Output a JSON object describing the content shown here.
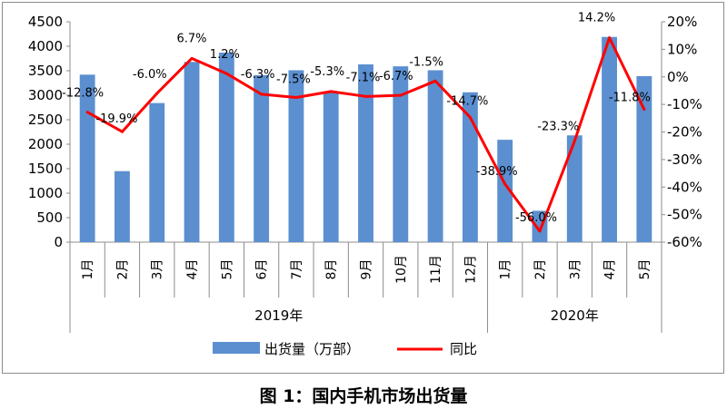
{
  "caption": "图 1：国内手机市场出货量",
  "chart_data": {
    "type": "bar",
    "title": "",
    "categories": [
      "1月",
      "2月",
      "3月",
      "4月",
      "5月",
      "6月",
      "7月",
      "8月",
      "9月",
      "10月",
      "11月",
      "12月",
      "1月",
      "2月",
      "3月",
      "4月",
      "5月"
    ],
    "groups": [
      {
        "label": "2019年",
        "count": 12
      },
      {
        "label": "2020年",
        "count": 5
      }
    ],
    "series": [
      {
        "name": "出货量（万部）",
        "type": "bar",
        "axis": "left",
        "color": "#5b8fd0",
        "values": [
          3420,
          1450,
          2840,
          3680,
          3870,
          3410,
          3510,
          3070,
          3630,
          3590,
          3510,
          3060,
          2090,
          640,
          2180,
          4190,
          3390
        ]
      },
      {
        "name": "同比",
        "type": "line",
        "axis": "right",
        "color": "#ff0000",
        "values": [
          -12.8,
          -19.9,
          -6.0,
          6.7,
          1.2,
          -6.3,
          -7.5,
          -5.3,
          -7.1,
          -6.7,
          -1.5,
          -14.7,
          -38.9,
          -56.0,
          -23.3,
          14.2,
          -11.8
        ],
        "labels": [
          "-12.8%",
          "-19.9%",
          "-6.0%",
          "6.7%",
          "1.2%",
          "-6.3%",
          "-7.5%",
          "-5.3%",
          "-7.1%",
          "-6.7%",
          "-1.5%",
          "-14.7%",
          "-38.9%",
          "-56.0%",
          "-23.3%",
          "14.2%",
          "-11.8%"
        ]
      }
    ],
    "y_left": {
      "min": 0,
      "max": 4500,
      "step": 500,
      "ticks": [
        "0",
        "500",
        "1000",
        "1500",
        "2000",
        "2500",
        "3000",
        "3500",
        "4000",
        "4500"
      ]
    },
    "y_right": {
      "min": -60,
      "max": 20,
      "step": 10,
      "ticks": [
        "-60%",
        "-50%",
        "-40%",
        "-30%",
        "-20%",
        "-10%",
        "0%",
        "10%",
        "20%"
      ]
    },
    "grid": false,
    "legend_position": "bottom"
  }
}
